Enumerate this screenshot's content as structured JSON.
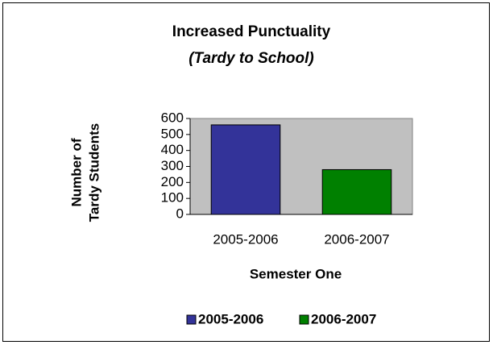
{
  "chart_data": {
    "type": "bar",
    "title": "Increased Punctuality",
    "subtitle": "(Tardy to School)",
    "ylabel": [
      "Number of",
      "Tardy Students"
    ],
    "xlabel": "Semester One",
    "categories": [
      "2005-2006",
      "2006-2007"
    ],
    "values": [
      560,
      280
    ],
    "colors": [
      "#333399",
      "#008000"
    ],
    "ylim": [
      0,
      600
    ],
    "yticks": [
      0,
      100,
      200,
      300,
      400,
      500,
      600
    ],
    "plot_background": "#c0c0c0",
    "legend": "bottom"
  }
}
